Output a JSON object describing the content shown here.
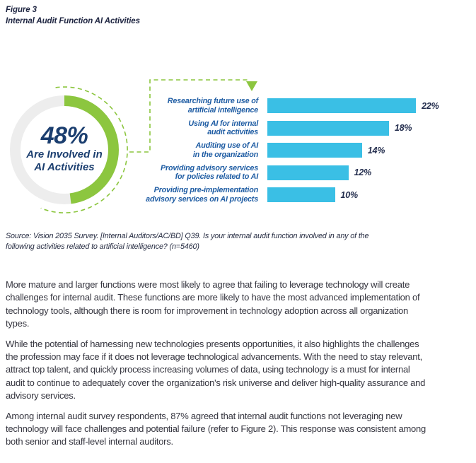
{
  "figure": {
    "label": "Figure 3",
    "title": "Internal Audit Function AI Activities"
  },
  "chart_data": {
    "type": "bar",
    "orientation": "horizontal",
    "title": "Internal Audit Function AI Activities",
    "categories": [
      "Researching future use of artificial intelligence",
      "Using AI for internal audit activities",
      "Auditing use of AI in the organization",
      "Providing advisory services for policies related to AI",
      "Providing pre-implementation advisory services on AI projects"
    ],
    "category_lines": [
      [
        "Researching future use of",
        "artificial intelligence"
      ],
      [
        "Using AI for internal",
        "audit activities"
      ],
      [
        "Auditing use of AI",
        "in the organization"
      ],
      [
        "Providing advisory services",
        "for policies related to AI"
      ],
      [
        "Providing pre-implementation",
        "advisory services on AI projects"
      ]
    ],
    "values": [
      22,
      18,
      14,
      12,
      10
    ],
    "value_labels": [
      "22%",
      "18%",
      "14%",
      "12%",
      "10%"
    ],
    "xlim": [
      0,
      25
    ],
    "grid": false,
    "legend": "none",
    "donut": {
      "value": 48,
      "value_label": "48%",
      "caption_lines": [
        "Are Involved in",
        "AI Activities"
      ],
      "caption": "Are Involved in AI Activities"
    }
  },
  "donut": {
    "value": "48%",
    "caption_lines": [
      "Are Involved in",
      "AI Activities"
    ]
  },
  "source": "Source: Vision 2035 Survey. [Internal Auditors/AC/BD] Q39. Is your internal audit function involved in any of the following activities related to artificial intelligence? (n=5460)",
  "paragraphs": [
    "More mature and larger functions were most likely to agree that failing to leverage technology will create challenges for internal audit. These functions are more likely to have the most advanced implementation of technology tools, although there is room for improvement in technology adoption across all organization types.",
    "While the potential of harnessing new technologies presents opportunities, it also highlights the challenges the profession may face if it does not leverage technological advancements. With the need to stay relevant, attract top talent, and quickly process increasing volumes of data, using technology is a must for internal audit to continue to adequately cover the organization's risk universe and deliver high-quality assurance and advisory services.",
    "Among internal audit survey respondents, 87% agreed that internal audit functions not leveraging new technology will face challenges and potential failure (refer to Figure 2). This response was consistent among both senior and staff-level internal auditors."
  ],
  "colors": {
    "bar": "#3ABFE5",
    "green": "#8CC63F",
    "donut_track": "#EDEDED",
    "label_blue": "#1E5CA3",
    "navy": "#1B3E6F",
    "value_navy": "#242E4E",
    "heading": "#1D2440",
    "body_text": "#35353F",
    "source_text": "#262C42"
  }
}
